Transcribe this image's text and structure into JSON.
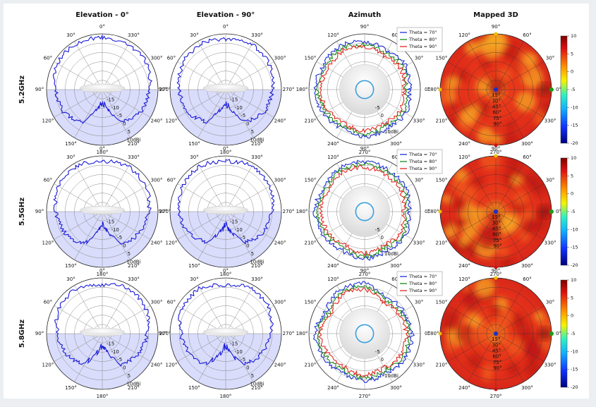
{
  "column_titles": [
    "Elevation - 0°",
    "Elevation - 90°",
    "Azimuth",
    "Mapped 3D"
  ],
  "row_labels": [
    "5.2GHz",
    "5.5GHz",
    "5.8GHz"
  ],
  "elevation_angle_labels": [
    "0°",
    "330°",
    "300°",
    "270°",
    "240°",
    "210°",
    "180°",
    "150°",
    "120°",
    "90°",
    "60°",
    "30°"
  ],
  "azimuth_angle_labels": [
    "90°",
    "60°",
    "30°",
    "0°",
    "330°",
    "300°",
    "270°",
    "240°",
    "210°",
    "180°",
    "150°",
    "120°"
  ],
  "map_angle_labels": [
    "90°",
    "60°",
    "30°",
    "0°",
    "330°",
    "300°",
    "270°",
    "240°",
    "210°",
    "180°",
    "150°",
    "120°"
  ],
  "radial_tick_labels": [
    "-15",
    "-10",
    "-5",
    "0",
    "5",
    "10dBi"
  ],
  "azimuth_radial_tick_labels": [
    "-5",
    "0",
    "5",
    "10dBi"
  ],
  "map_radial_labels": [
    "15°",
    "30°",
    "45°",
    "60°",
    "75°",
    "90°"
  ],
  "legend": [
    "Theta = 70°",
    "Theta = 80°",
    "Theta = 90°"
  ],
  "colorbar_ticks": [
    "10",
    "5",
    "0",
    "-5",
    "-10",
    "-15",
    "-20"
  ],
  "colors": {
    "elevation": "#1a1ad9",
    "theta70": "#1f2fd6",
    "theta80": "#1a8a1a",
    "theta90": "#e3261f",
    "shade": "#d9dcfa",
    "inner_circle": "#3a9fe0"
  },
  "chart_data": [
    {
      "type": "polar-line",
      "title": "Elevation - 0°",
      "rows": [
        "5.2GHz",
        "5.5GHz",
        "5.8GHz"
      ],
      "rlim_dbi": [
        -20,
        10
      ],
      "angle_direction": "clockwise, 0° at top",
      "series": [
        {
          "row": "5.2GHz",
          "angles_deg": [
            0,
            30,
            60,
            90,
            120,
            150,
            170,
            180,
            190,
            210,
            240,
            270,
            300,
            330
          ],
          "gain_dbi": [
            8,
            8,
            8,
            5,
            4,
            0,
            -10,
            -11,
            -10,
            0,
            4,
            5,
            8,
            8
          ]
        },
        {
          "row": "5.5GHz",
          "angles_deg": [
            0,
            30,
            60,
            90,
            120,
            150,
            170,
            180,
            190,
            210,
            240,
            270,
            300,
            330
          ],
          "gain_dbi": [
            7,
            8,
            7,
            5,
            3,
            0,
            -9,
            -12,
            -9,
            0,
            3,
            5,
            7,
            8
          ]
        },
        {
          "row": "5.8GHz",
          "angles_deg": [
            0,
            30,
            60,
            90,
            120,
            150,
            170,
            180,
            190,
            210,
            240,
            270,
            300,
            330
          ],
          "gain_dbi": [
            6,
            8,
            7,
            4,
            2,
            -1,
            -10,
            -12,
            -10,
            -1,
            2,
            4,
            7,
            8
          ]
        }
      ]
    },
    {
      "type": "polar-line",
      "title": "Elevation - 90°",
      "rows": [
        "5.2GHz",
        "5.5GHz",
        "5.8GHz"
      ],
      "rlim_dbi": [
        -20,
        10
      ],
      "angle_direction": "clockwise, 0° at top",
      "series": [
        {
          "row": "5.2GHz",
          "angles_deg": [
            0,
            30,
            60,
            90,
            120,
            150,
            170,
            180,
            190,
            210,
            240,
            270,
            300,
            330
          ],
          "gain_dbi": [
            7,
            8,
            7,
            5,
            4,
            0,
            -9,
            -11,
            -9,
            0,
            4,
            5,
            7,
            8
          ]
        },
        {
          "row": "5.5GHz",
          "angles_deg": [
            0,
            30,
            60,
            90,
            120,
            150,
            170,
            180,
            190,
            210,
            240,
            270,
            300,
            330
          ],
          "gain_dbi": [
            7,
            8,
            7,
            5,
            3,
            -1,
            -9,
            -12,
            -9,
            -1,
            3,
            5,
            7,
            8
          ]
        },
        {
          "row": "5.8GHz",
          "angles_deg": [
            0,
            30,
            60,
            90,
            120,
            150,
            170,
            180,
            190,
            210,
            240,
            270,
            300,
            330
          ],
          "gain_dbi": [
            6,
            8,
            7,
            4,
            2,
            -1,
            -10,
            -12,
            -10,
            -1,
            2,
            4,
            7,
            8
          ]
        }
      ]
    },
    {
      "type": "polar-line",
      "title": "Azimuth",
      "rows": [
        "5.2GHz",
        "5.5GHz",
        "5.8GHz"
      ],
      "rlim_dbi": [
        -10,
        10
      ],
      "angle_direction": "counter-clockwise, 0° at right",
      "series": [
        {
          "row": "5.2GHz",
          "name": "Theta = 70°",
          "angles_deg": [
            0,
            30,
            60,
            90,
            120,
            150,
            180,
            210,
            240,
            270,
            300,
            330
          ],
          "gain_dbi": [
            6,
            7,
            6,
            7,
            8,
            7,
            8,
            7,
            6,
            7,
            6,
            7
          ]
        },
        {
          "row": "5.2GHz",
          "name": "Theta = 80°",
          "angles_deg": [
            0,
            30,
            60,
            90,
            120,
            150,
            180,
            210,
            240,
            270,
            300,
            330
          ],
          "gain_dbi": [
            5,
            6,
            5,
            6,
            7,
            6,
            7,
            6,
            5,
            6,
            5,
            6
          ]
        },
        {
          "row": "5.2GHz",
          "name": "Theta = 90°",
          "angles_deg": [
            0,
            30,
            60,
            90,
            120,
            150,
            180,
            210,
            240,
            270,
            300,
            330
          ],
          "gain_dbi": [
            4,
            5,
            4,
            5,
            6,
            5,
            6,
            5,
            4,
            5,
            4,
            5
          ]
        },
        {
          "row": "5.5GHz",
          "name": "Theta = 70°",
          "angles_deg": [
            0,
            30,
            60,
            90,
            120,
            150,
            180,
            210,
            240,
            270,
            300,
            330
          ],
          "gain_dbi": [
            6,
            7,
            7,
            8,
            8,
            7,
            8,
            7,
            6,
            7,
            6,
            7
          ]
        },
        {
          "row": "5.5GHz",
          "name": "Theta = 80°",
          "angles_deg": [
            0,
            30,
            60,
            90,
            120,
            150,
            180,
            210,
            240,
            270,
            300,
            330
          ],
          "gain_dbi": [
            5,
            6,
            6,
            7,
            7,
            6,
            7,
            6,
            5,
            6,
            5,
            6
          ]
        },
        {
          "row": "5.5GHz",
          "name": "Theta = 90°",
          "angles_deg": [
            0,
            30,
            60,
            90,
            120,
            150,
            180,
            210,
            240,
            270,
            300,
            330
          ],
          "gain_dbi": [
            4,
            5,
            5,
            6,
            6,
            5,
            6,
            5,
            4,
            5,
            4,
            5
          ]
        },
        {
          "row": "5.8GHz",
          "name": "Theta = 70°",
          "angles_deg": [
            0,
            30,
            60,
            90,
            120,
            150,
            180,
            210,
            240,
            270,
            300,
            330
          ],
          "gain_dbi": [
            7,
            6,
            5,
            8,
            8,
            6,
            8,
            7,
            6,
            7,
            6,
            7
          ]
        },
        {
          "row": "5.8GHz",
          "name": "Theta = 80°",
          "angles_deg": [
            0,
            30,
            60,
            90,
            120,
            150,
            180,
            210,
            240,
            270,
            300,
            330
          ],
          "gain_dbi": [
            6,
            5,
            4,
            7,
            7,
            5,
            7,
            6,
            5,
            6,
            5,
            6
          ]
        },
        {
          "row": "5.8GHz",
          "name": "Theta = 90°",
          "angles_deg": [
            0,
            30,
            60,
            90,
            120,
            150,
            180,
            210,
            240,
            270,
            300,
            330
          ],
          "gain_dbi": [
            5,
            4,
            3,
            6,
            6,
            4,
            6,
            5,
            4,
            5,
            4,
            5
          ]
        }
      ]
    },
    {
      "type": "heatmap",
      "title": "Mapped 3D",
      "rows": [
        "5.2GHz",
        "5.5GHz",
        "5.8GHz"
      ],
      "colorbar_range_dbi": [
        -20,
        10
      ],
      "theta_rings_deg": [
        15,
        30,
        45,
        60,
        75,
        90
      ],
      "approx_gain_dbi": "mostly 2 to 8 across the hemisphere"
    }
  ]
}
